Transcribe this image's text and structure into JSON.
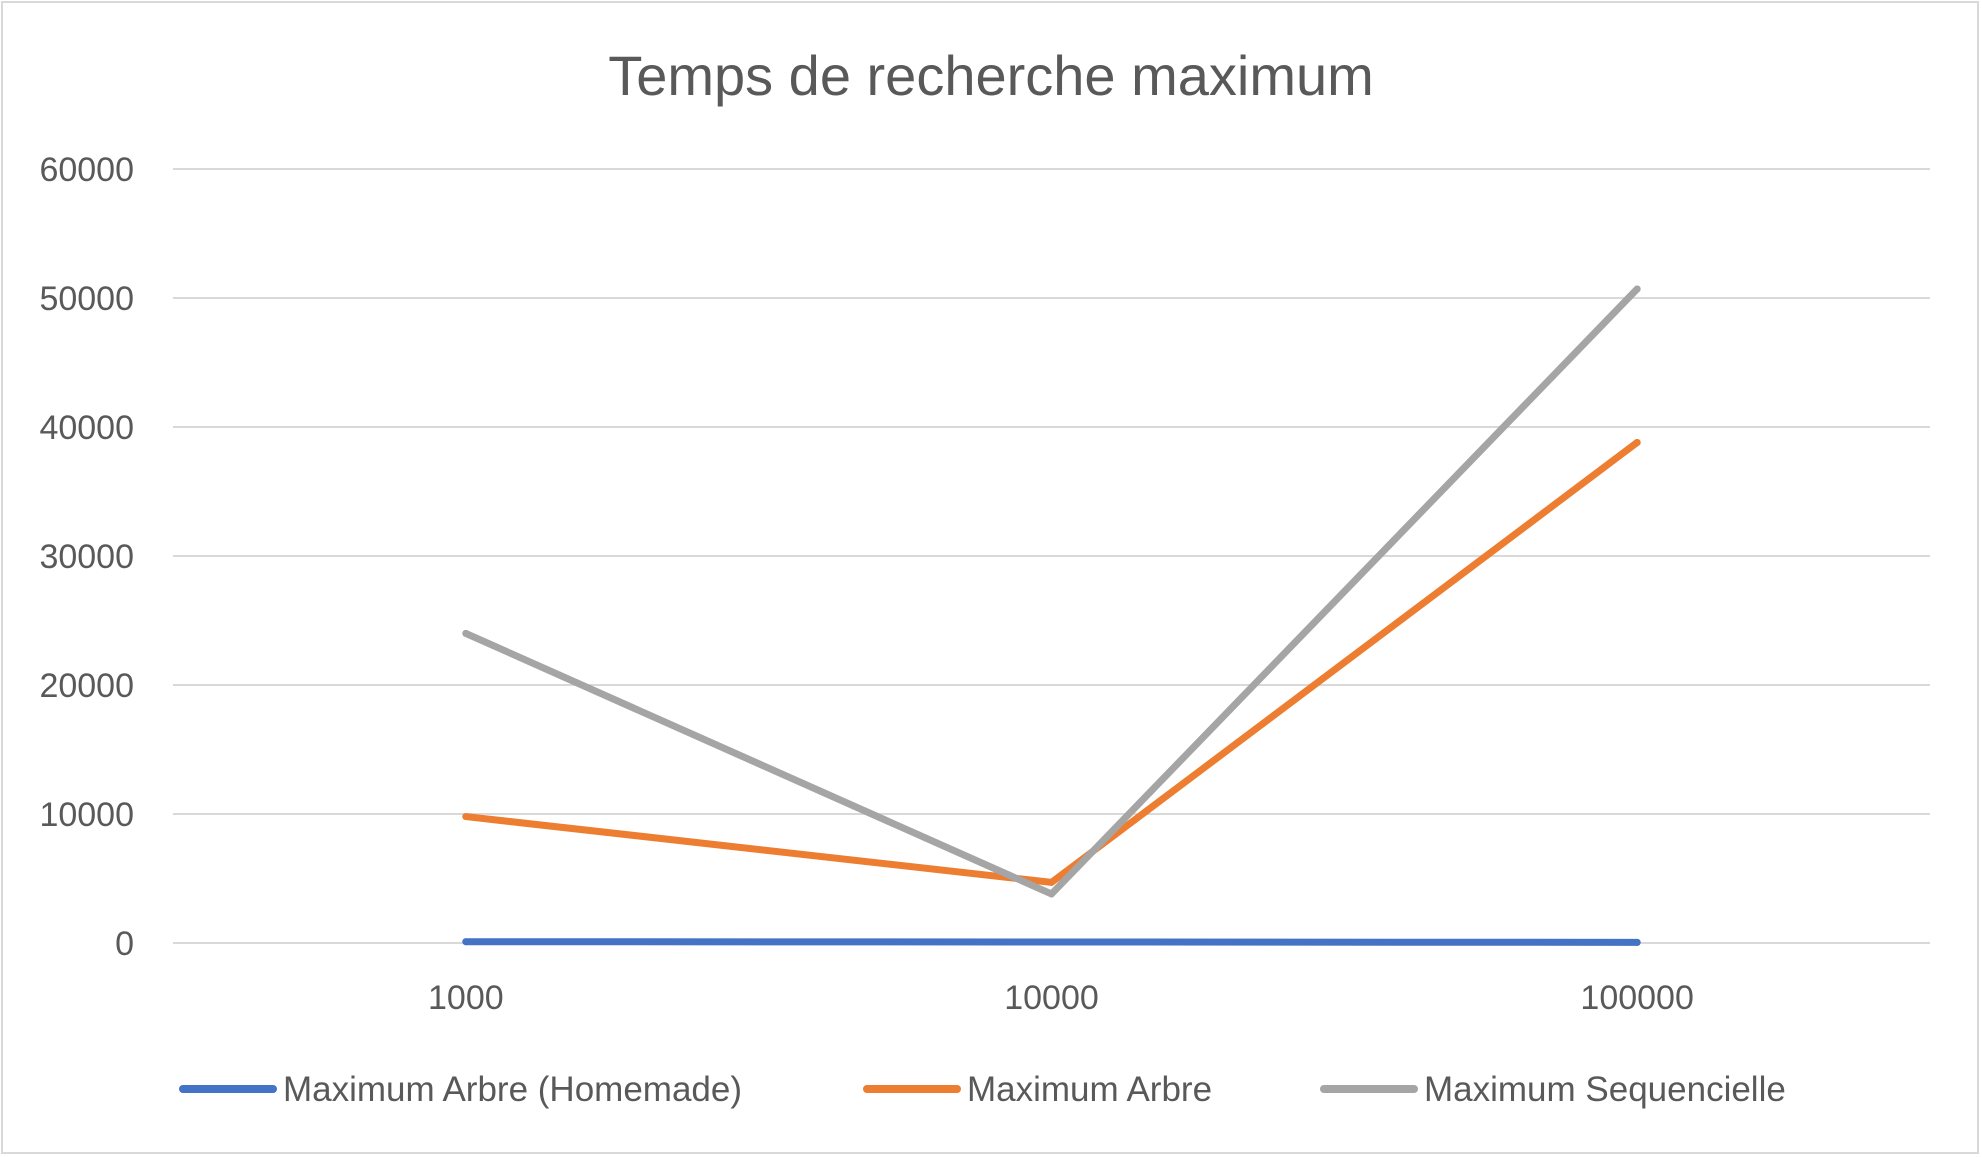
{
  "chart_data": {
    "type": "line",
    "title": "Temps de recherche maximum",
    "xlabel": "",
    "ylabel": "",
    "categories": [
      "1000",
      "10000",
      "100000"
    ],
    "ylim": [
      0,
      60000
    ],
    "yticks": [
      0,
      10000,
      20000,
      30000,
      40000,
      50000,
      60000
    ],
    "grid": true,
    "legend": "bottom",
    "series": [
      {
        "name": "Maximum Arbre (Homemade)",
        "color": "#4472c4",
        "values": [
          100,
          80,
          50
        ]
      },
      {
        "name": "Maximum Arbre",
        "color": "#ed7d31",
        "values": [
          9800,
          4700,
          38800
        ]
      },
      {
        "name": "Maximum Sequencielle",
        "color": "#a5a5a5",
        "values": [
          24000,
          3800,
          50700
        ]
      }
    ]
  }
}
